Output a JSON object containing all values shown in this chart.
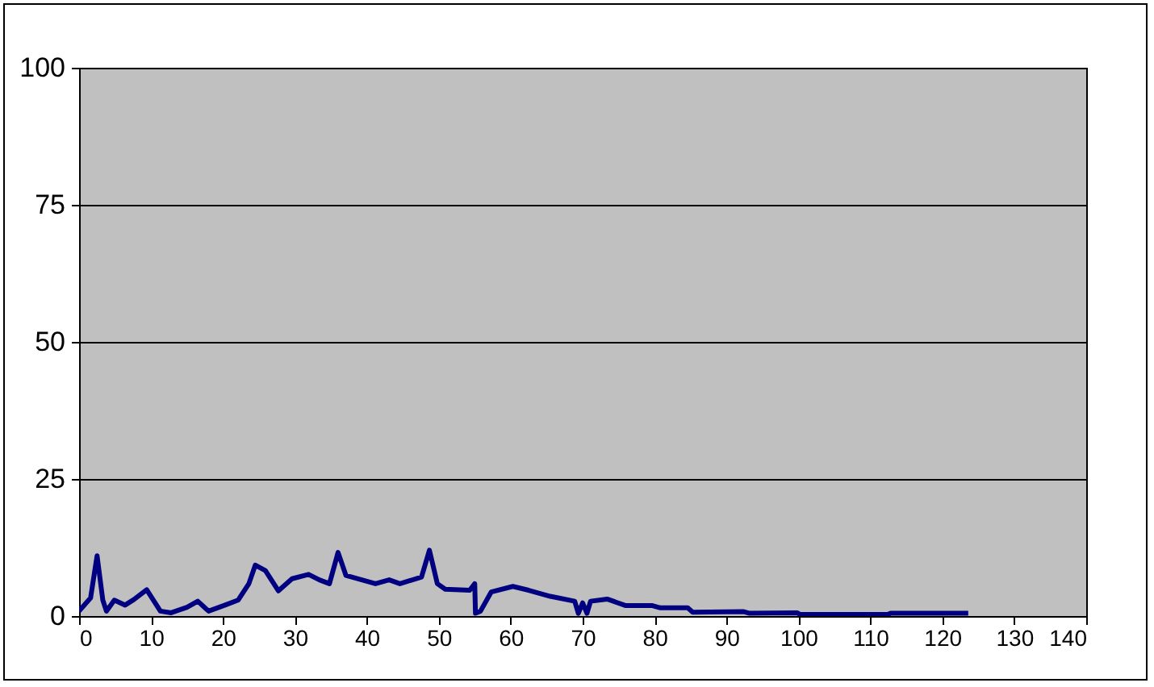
{
  "chart_data": {
    "type": "line",
    "xlim": [
      0,
      140
    ],
    "xticks": [
      0,
      10,
      20,
      30,
      40,
      50,
      60,
      70,
      80,
      90,
      100,
      110,
      120,
      130,
      140
    ],
    "ylim": [
      0,
      100
    ],
    "yticks": [
      0,
      25,
      50,
      75,
      100
    ],
    "grid": "y",
    "series": [
      {
        "color": "#000080",
        "x": [
          0,
          1.6,
          2.5,
          3.3,
          3.8,
          4.9,
          6.4,
          7.6,
          9.4,
          11.3,
          12.8,
          15,
          16.5,
          18,
          20.3,
          22.1,
          23.6,
          24.5,
          25.9,
          27.7,
          29.6,
          31.9,
          33.4,
          34.8,
          36,
          37.1,
          39.3,
          41.2,
          43.1,
          44.6,
          47.6,
          48.7,
          49.8,
          50.9,
          54.3,
          55,
          55.1,
          55.8,
          57.3,
          60.3,
          62.5,
          65.5,
          68.9,
          69.4,
          70,
          70.6,
          71.1,
          73.4,
          76,
          79.7,
          80.8,
          84.6,
          85.3,
          92.4,
          93.2,
          99.8,
          100.2,
          112.4,
          112.8,
          123.6
        ],
        "values": [
          0.9,
          3.3,
          11,
          2.9,
          0.9,
          2.9,
          2,
          3,
          4.8,
          0.9,
          0.6,
          1.6,
          2.7,
          0.9,
          2,
          2.9,
          5.9,
          9.3,
          8.3,
          4.6,
          6.8,
          7.6,
          6.6,
          5.9,
          11.6,
          7.4,
          6.6,
          5.9,
          6.6,
          5.9,
          7.1,
          12,
          5.9,
          4.9,
          4.7,
          5.9,
          0.5,
          0.9,
          4.4,
          5.4,
          4.7,
          3.6,
          2.7,
          0.5,
          2.4,
          0.5,
          2.7,
          3.1,
          1.9,
          1.9,
          1.5,
          1.5,
          0.7,
          0.8,
          0.5,
          0.6,
          0.3,
          0.3,
          0.5,
          0.5
        ]
      }
    ]
  }
}
